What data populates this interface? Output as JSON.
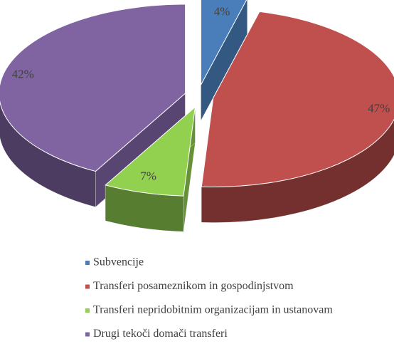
{
  "chart_data": {
    "type": "pie",
    "categories": [
      "Subvencije",
      "Transferi posameznikom in gospodinjstvom",
      "Transferi nepridobitnim organizacijam in ustanovam",
      "Drugi tekoči domači transferi"
    ],
    "values": [
      4,
      47,
      7,
      42
    ],
    "value_labels": [
      "4%",
      "47%",
      "7%",
      "42%"
    ],
    "colors": [
      "#4a7ebb",
      "#c0504d",
      "#92d050",
      "#8064a2"
    ]
  }
}
